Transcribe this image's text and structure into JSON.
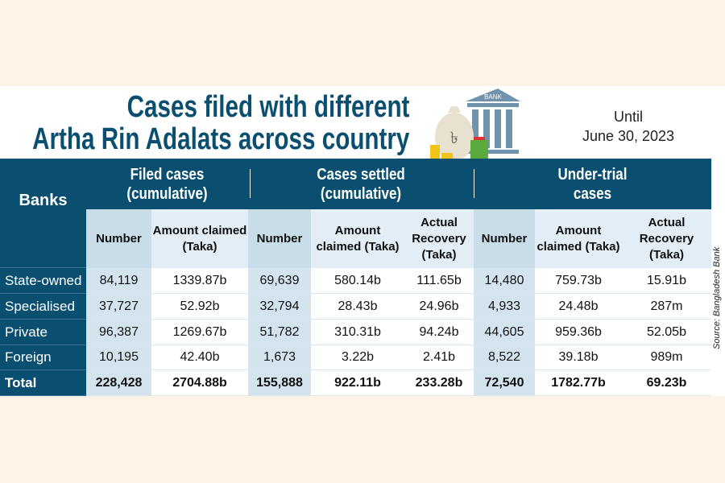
{
  "title_line1": "Cases filed with different",
  "title_line2": "Artha Rin Adalats across country",
  "until": "Until",
  "date": "June 30, 2023",
  "bank_label": "BANK",
  "groups": [
    {
      "line1": "Filed cases",
      "line2": "(cumulative)"
    },
    {
      "line1": "Cases settled",
      "line2": "(cumulative)"
    },
    {
      "line1": "Under-trial",
      "line2": "cases"
    }
  ],
  "banks_header": "Banks",
  "columns": [
    "Number",
    "Amount claimed (Taka)",
    "Number",
    "Amount claimed (Taka)",
    "Actual Recovery (Taka)",
    "Number",
    "Amount claimed (Taka)",
    "Actual Recovery (Taka)"
  ],
  "rows": [
    {
      "bank": "State-owned",
      "values": [
        "84,119",
        "1339.87b",
        "69,639",
        "580.14b",
        "111.65b",
        "14,480",
        "759.73b",
        "15.91b"
      ]
    },
    {
      "bank": "Specialised",
      "values": [
        "37,727",
        "52.92b",
        "32,794",
        "28.43b",
        "24.96b",
        "4,933",
        "24.48b",
        "287m"
      ]
    },
    {
      "bank": "Private",
      "values": [
        "96,387",
        "1269.67b",
        "51,782",
        "310.31b",
        "94.24b",
        "44,605",
        "959.36b",
        "52.05b"
      ]
    },
    {
      "bank": "Foreign",
      "values": [
        "10,195",
        "42.40b",
        "1,673",
        "3.22b",
        "2.41b",
        "8,522",
        "39.18b",
        "989m"
      ]
    },
    {
      "bank": "Total",
      "values": [
        "228,428",
        "2704.88b",
        "155,888",
        "922.11b",
        "233.28b",
        "72,540",
        "1782.77b",
        "69.23b"
      ]
    }
  ],
  "source": "Source: Bangladesh Bank",
  "colors": {
    "header": "#0b4f70",
    "subheader": "#dce9f3",
    "number_col": "#c9dde9",
    "background": "#fdf3e6"
  }
}
